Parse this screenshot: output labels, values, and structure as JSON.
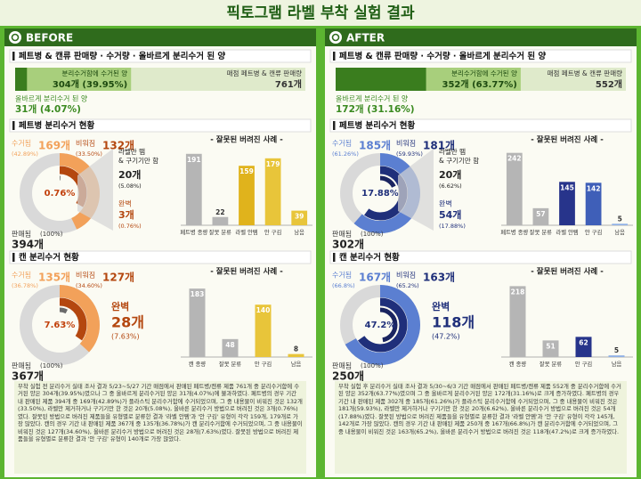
{
  "title": "픽토그램 라벨 부착 실험 결과",
  "panels": [
    {
      "label": "BEFORE",
      "colors": {
        "light": "#f2a15a",
        "dark": "#b4470f",
        "perfect": "#6b6b6b",
        "center": "#c2410c"
      },
      "summary": {
        "heading": "페트병 & 캔류 판매량 · 수거량 · 올바르게 분리수거 된 양",
        "sold": {
          "name": "매점 페트병 & 캔류 판매량",
          "value": 761,
          "value_label": "761개"
        },
        "collected": {
          "name": "분리수거함에 수거된 양",
          "value": 304,
          "value_label": "304개 (39.95%)"
        },
        "correct": {
          "name": "올바르게 분리수거 된 양",
          "value": 31,
          "value_label": "31개 (4.07%)"
        }
      },
      "sections": [
        {
          "heading": "페트병 분리수거 현황",
          "chart_heading": "- 잘못된 버려진 사례 -",
          "center_label": "0.76%",
          "ring": [
            {
              "name": "판매됨",
              "value": 394,
              "value_label": "394개",
              "pct": "(100%)"
            },
            {
              "name": "수거됨",
              "value": 169,
              "value_label": "169개",
              "pct": "(42.89%)"
            },
            {
              "name": "비워짐",
              "value": 132,
              "value_label": "132개",
              "pct": "(33.50%)"
            },
            {
              "name": "완벽",
              "value": 3,
              "value_label": "3개",
              "pct": "(0.76%)"
            }
          ],
          "side": {
            "name_lines": [
              "라벨만 뗌",
              "& 구기기만 함"
            ],
            "value": 20,
            "value_label": "20개",
            "pct": "(5.08%)"
          },
          "bars": {
            "categories": [
              "페트병 종량",
              "잘못 분류",
              "라벨 안뗌",
              "안 구김",
              "남음"
            ],
            "values": [
              191,
              22,
              159,
              179,
              39
            ],
            "colors": [
              "#b5b5b5",
              "#b5b5b5",
              "#e0b31c",
              "#e8c53a",
              "#e8c53a"
            ],
            "ylim": [
              0,
              200
            ]
          }
        },
        {
          "heading": "캔 분리수거 현황",
          "chart_heading": "- 잘못된 버려진 사례 -",
          "center_label": "7.63%",
          "ring": [
            {
              "name": "판매됨",
              "value": 367,
              "value_label": "367개",
              "pct": "(100%)"
            },
            {
              "name": "수거됨",
              "value": 135,
              "value_label": "135개",
              "pct": "(36.78%)"
            },
            {
              "name": "비워짐",
              "value": 127,
              "value_label": "127개",
              "pct": "(34.60%)"
            },
            {
              "name": "완벽",
              "value": 28,
              "value_label": "28개",
              "pct": "(7.63%)"
            }
          ],
          "bars": {
            "categories": [
              "캔 종량",
              "잘못 분류",
              "안 구김",
              "남음"
            ],
            "values": [
              183,
              48,
              140,
              8
            ],
            "colors": [
              "#b5b5b5",
              "#b5b5b5",
              "#e8c53a",
              "#e8c53a"
            ],
            "ylim": [
              0,
              200
            ]
          }
        }
      ],
      "note": "부착 실험 전 분리수거 실태 조사 결과 5/23~5/27 기간 매점에서 판매된 페트병/캔류 제품 761개 중 분리수거함에 수거된 양은 304개(39.95%)였으나 그 중 올바르게 분리수거된 양은 31개(4.07%)에 불과하였다. 페트병의 경우 기간 내 판매된 제품 394개 중 169개(42.89%)가 플라스틱 분리수거함에 수거되었으며, 그 중 내용물이 비워진 것은 132개(33.50%), 라벨만 제거하거나 구기기만 한 것은 20개(5.08%), 올바른 분리수거 방법으로 버려진 것은 3개(0.76%)였다. 잘못된 방법으로 버려진 제품들을 유형별로 분류한 결과 '라벨 안뗌'과 '안 구김' 유형이 각각 159개, 179개로 가장 많았다. 캔의 경우 기간 내 판매된 제품 367개 중 135개(36.78%)가 캔 분리수거함에 수거되었으며, 그 중 내용물이 비워진 것은 127개(34.60%), 올바른 분리수거 방법으로 버려진 것은 28개(7.63%)였다. 잘못된 방법으로 버려진 제품들을 유형별로 분류한 결과 '안 구김' 유형이 140개로 가장 많았다."
    },
    {
      "label": "AFTER",
      "colors": {
        "light": "#5b7fd1",
        "dark": "#1f2f7a",
        "perfect": "#1a2460",
        "center": "#1f2f7a"
      },
      "summary": {
        "heading": "페트병 & 캔류 판매량 · 수거량 · 올바르게 분리수거 된 양",
        "sold": {
          "name": "매점 페트병 & 캔류 판매량",
          "value": 552,
          "value_label": "552개"
        },
        "collected": {
          "name": "분리수거함에 수거된 양",
          "value": 352,
          "value_label": "352개 (63.77%)"
        },
        "correct": {
          "name": "올바르게 분리수거 된 양",
          "value": 172,
          "value_label": "172개 (31.16%)"
        }
      },
      "sections": [
        {
          "heading": "페트병 분리수거 현황",
          "chart_heading": "- 잘못된 버려진 사례 -",
          "center_label": "17.88%",
          "ring": [
            {
              "name": "판매됨",
              "value": 302,
              "value_label": "302개",
              "pct": "(100%)"
            },
            {
              "name": "수거됨",
              "value": 185,
              "value_label": "185개",
              "pct": "(61.26%)"
            },
            {
              "name": "비워짐",
              "value": 181,
              "value_label": "181개",
              "pct": "(59.93%)"
            },
            {
              "name": "완벽",
              "value": 54,
              "value_label": "54개",
              "pct": "(17.88%)"
            }
          ],
          "side": {
            "name_lines": [
              "라벨만 뗌",
              "& 구기기만 함"
            ],
            "value": 20,
            "value_label": "20개",
            "pct": "(6.62%)"
          },
          "bars": {
            "categories": [
              "페트병 종량",
              "잘못 분류",
              "라벨 안뗌",
              "안 구김",
              "남음"
            ],
            "values": [
              242,
              57,
              145,
              142,
              5
            ],
            "colors": [
              "#b5b5b5",
              "#b5b5b5",
              "#27348b",
              "#3f5fb8",
              "#8fb0e6"
            ],
            "ylim": [
              0,
              250
            ]
          }
        },
        {
          "heading": "캔 분리수거 현황",
          "chart_heading": "- 잘못된 버려진 사례 -",
          "center_label": "47.2%",
          "ring": [
            {
              "name": "판매됨",
              "value": 250,
              "value_label": "250개",
              "pct": "(100%)"
            },
            {
              "name": "수거됨",
              "value": 167,
              "value_label": "167개",
              "pct": "(66.8%)"
            },
            {
              "name": "비워짐",
              "value": 163,
              "value_label": "163개",
              "pct": "(65.2%)"
            },
            {
              "name": "완벽",
              "value": 118,
              "value_label": "118개",
              "pct": "(47.2%)"
            }
          ],
          "bars": {
            "categories": [
              "캔 종량",
              "잘못 분류",
              "안 구김",
              "남음"
            ],
            "values": [
              218,
              51,
              62,
              5
            ],
            "colors": [
              "#b5b5b5",
              "#b5b5b5",
              "#27348b",
              "#8fb0e6"
            ],
            "ylim": [
              0,
              230
            ]
          }
        }
      ],
      "note": "부착 실험 후 분리수거 실태 조사 결과 5/30~6/3 기간 매점에서 판매된 페트병/캔류 제품 552개 중 분리수거함에 수거된 양은 352개(63.77%)였으며 그 중 올바르게 분리수거된 양은 172개(31.16%)로 크게 증가하였다. 페트병의 경우 기간 내 판매된 제품 302개 중 185개(61.26%)가 플라스틱 분리수거함에 수거되었으며, 그 중 내용물이 비워진 것은 181개(59.93%), 라벨만 제거하거나 구기기만 한 것은 20개(6.62%), 올바른 분리수거 방법으로 버려진 것은 54개(17.88%)였다. 잘못된 방법으로 버려진 제품들을 유형별로 분류한 결과 '라벨 안뗌'과 '안 구김' 유형이 각각 145개, 142개로 가장 많았다. 캔의 경우 기간 내 판매된 제품 250개 중 167개(66.8%)가 캔 분리수거함에 수거되었으며, 그 중 내용물이 비워진 것은 163개(65.2%), 올바른 분리수거 방법으로 버려진 것은 118개(47.2%)로 크게 증가하였다."
    }
  ]
}
